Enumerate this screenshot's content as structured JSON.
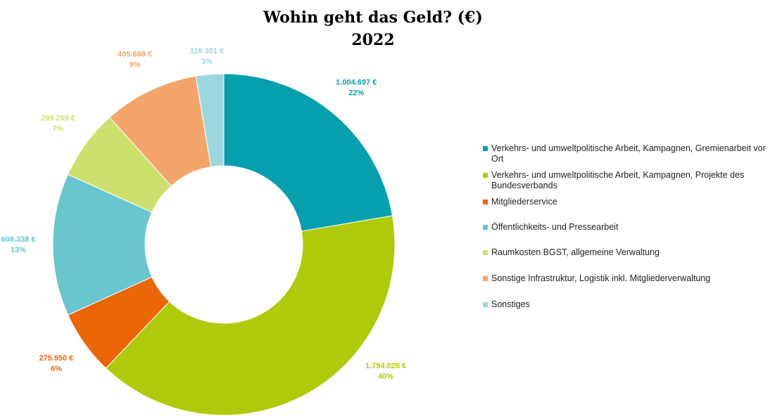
{
  "chart_data": {
    "type": "donut",
    "title": "Wohin geht das Geld? (€)",
    "subtitle": "2022",
    "categories": [
      "Verkehrs- und umweltpolitische Arbeit, Kampagnen, Gremienarbeit vor Ort",
      "Verkehrs- und umweltpolitische Arbeit, Kampagnen, Projekte des Bundesverbands",
      "Mitgliederservice",
      "Öffentlichkeits- und Pressearbeit",
      "Raumkosten BGST, allgemeine Verwaltung",
      "Sonstige Infrastruktur, Logistik inkl. Mitgliederverwaltung",
      "Sonstiges"
    ],
    "values": [
      1004697,
      1794025,
      275950,
      608338,
      299209,
      405688,
      118301
    ],
    "value_labels": [
      "1.004.697 €",
      "1.794.025 €",
      "275.950 €",
      "608.338 €",
      "299.209 €",
      "405.688 €",
      "118.301 €"
    ],
    "percent_labels": [
      "22%",
      "40%",
      "6%",
      "13%",
      "7%",
      "9%",
      "3%"
    ],
    "colors": [
      "#069fad",
      "#afca0b",
      "#eb6608",
      "#69c5ce",
      "#cde06d",
      "#f3a56b",
      "#9dd7de"
    ],
    "legend": "right"
  }
}
